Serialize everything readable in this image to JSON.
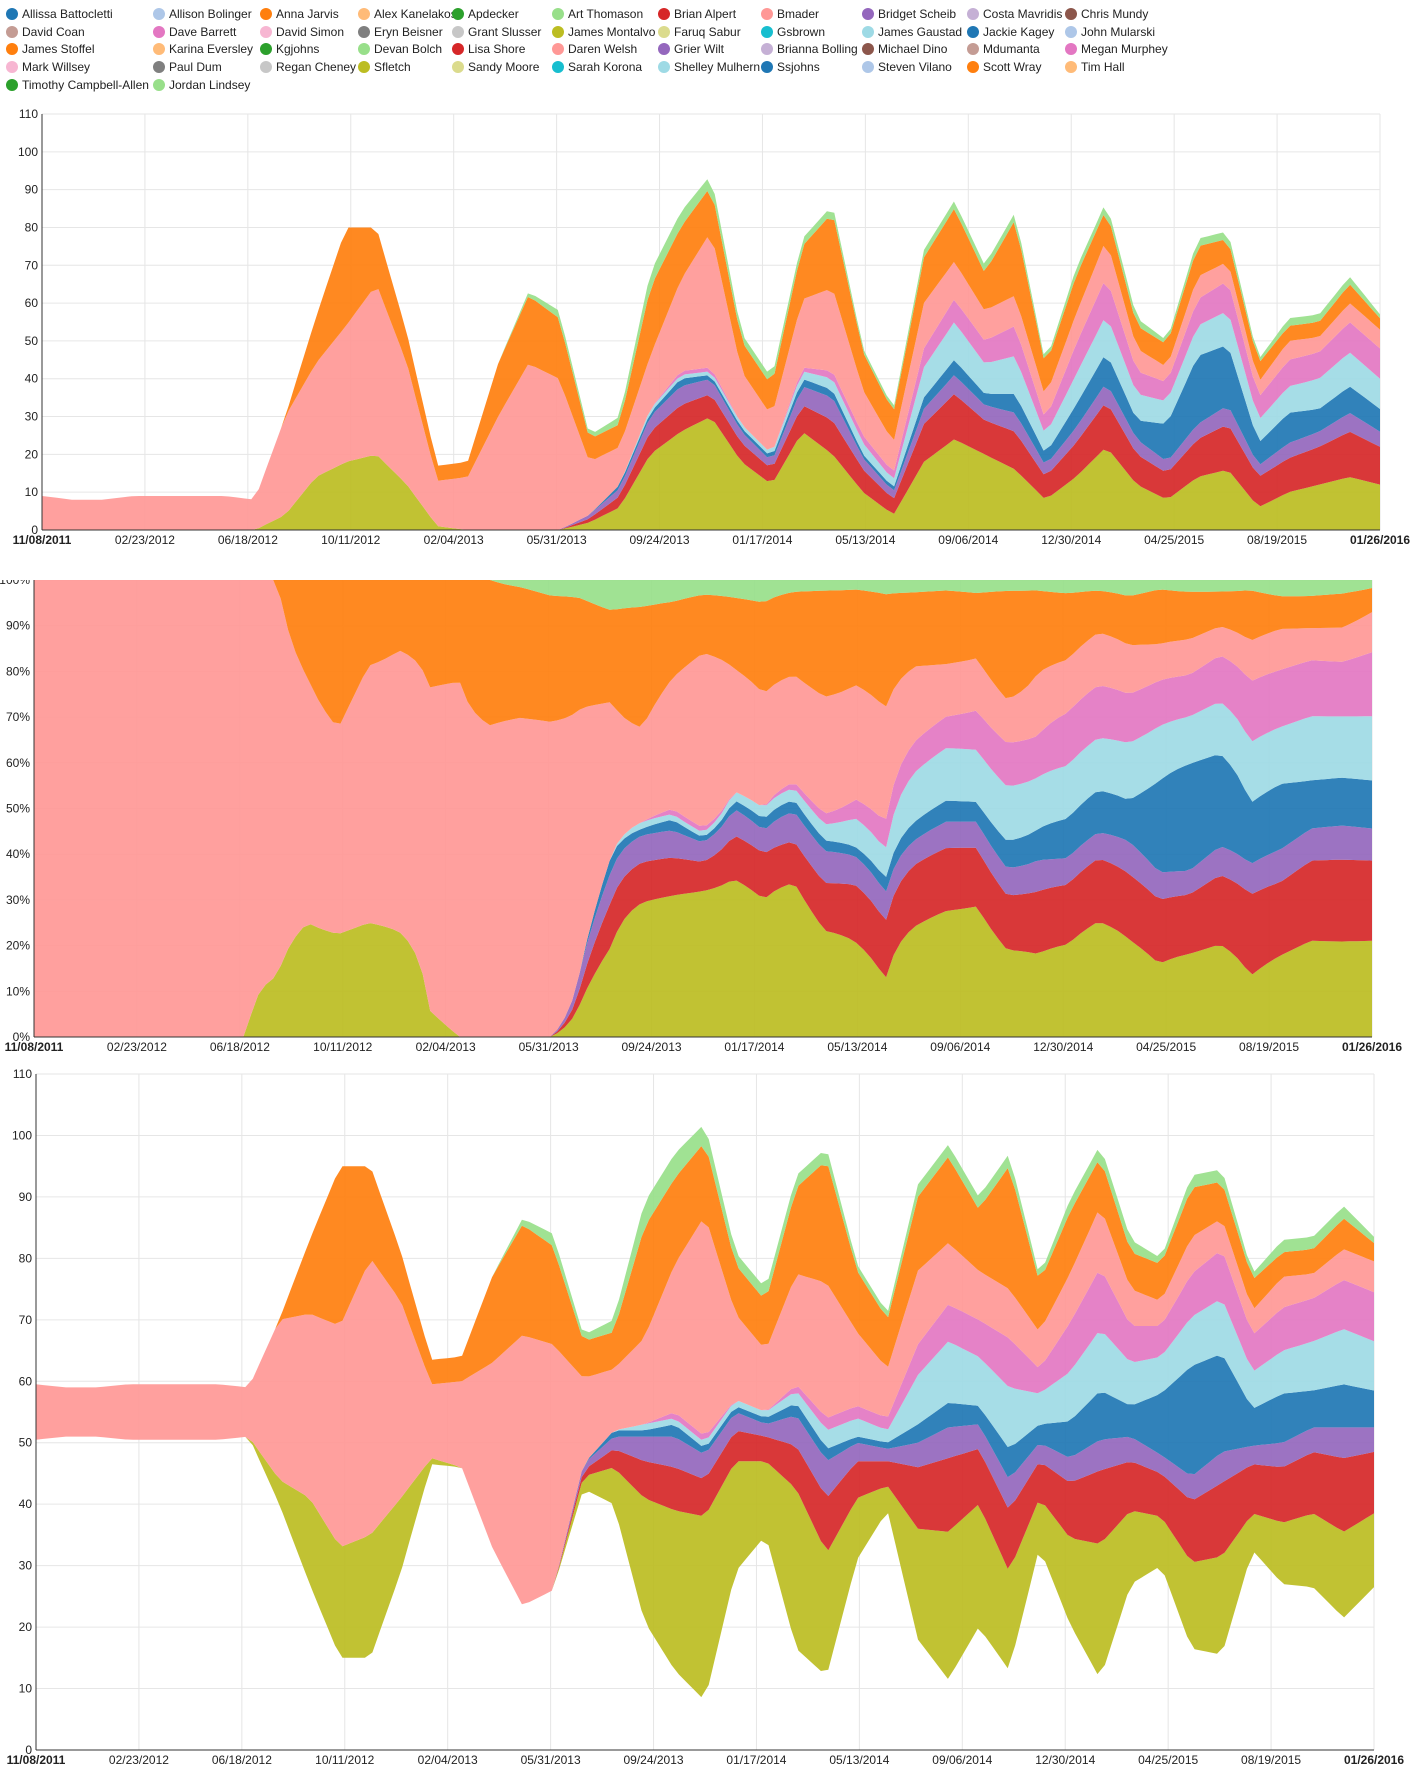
{
  "legend": [
    {
      "name": "Allissa Battocletti",
      "color": "#1f77b4"
    },
    {
      "name": "Allison Bolinger",
      "color": "#aec7e8"
    },
    {
      "name": "Anna Jarvis",
      "color": "#ff7f0e"
    },
    {
      "name": "Alex Kanelakos",
      "color": "#ffbb78"
    },
    {
      "name": "Apdecker",
      "color": "#2ca02c"
    },
    {
      "name": "Art Thomason",
      "color": "#98df8a"
    },
    {
      "name": "Brian Alpert",
      "color": "#d62728"
    },
    {
      "name": "Bmader",
      "color": "#ff9896"
    },
    {
      "name": "Bridget Scheib",
      "color": "#9467bd"
    },
    {
      "name": "Costa Mavridis",
      "color": "#c5b0d5"
    },
    {
      "name": "Chris Mundy",
      "color": "#8c564b"
    },
    {
      "name": "David Coan",
      "color": "#c49c94"
    },
    {
      "name": "Dave Barrett",
      "color": "#e377c2"
    },
    {
      "name": "David Simon",
      "color": "#f7b6d2"
    },
    {
      "name": "Eryn Beisner",
      "color": "#7f7f7f"
    },
    {
      "name": "Grant Slusser",
      "color": "#c7c7c7"
    },
    {
      "name": "James Montalvo",
      "color": "#bcbd22"
    },
    {
      "name": "Faruq Sabur",
      "color": "#dbdb8d"
    },
    {
      "name": "Gsbrown",
      "color": "#17becf"
    },
    {
      "name": "James Gaustad",
      "color": "#9edae5"
    },
    {
      "name": "Jackie Kagey",
      "color": "#1f77b4"
    },
    {
      "name": "John Mularski",
      "color": "#aec7e8"
    },
    {
      "name": "James Stoffel",
      "color": "#ff7f0e"
    },
    {
      "name": "Karina Eversley",
      "color": "#ffbb78"
    },
    {
      "name": "Kgjohns",
      "color": "#2ca02c"
    },
    {
      "name": "Devan Bolch",
      "color": "#98df8a"
    },
    {
      "name": "Lisa Shore",
      "color": "#d62728"
    },
    {
      "name": "Daren Welsh",
      "color": "#ff9896"
    },
    {
      "name": "Grier Wilt",
      "color": "#9467bd"
    },
    {
      "name": "Brianna Bolling",
      "color": "#c5b0d5"
    },
    {
      "name": "Michael Dino",
      "color": "#8c564b"
    },
    {
      "name": "Mdumanta",
      "color": "#c49c94"
    },
    {
      "name": "Megan Murphey",
      "color": "#e377c2"
    },
    {
      "name": "Mark Willsey",
      "color": "#f7b6d2"
    },
    {
      "name": "Paul Dum",
      "color": "#7f7f7f"
    },
    {
      "name": "Regan Cheney",
      "color": "#c7c7c7"
    },
    {
      "name": "Sfletch",
      "color": "#bcbd22"
    },
    {
      "name": "Sandy Moore",
      "color": "#dbdb8d"
    },
    {
      "name": "Sarah Korona",
      "color": "#17becf"
    },
    {
      "name": "Shelley Mulhern",
      "color": "#9edae5"
    },
    {
      "name": "Ssjohns",
      "color": "#1f77b4"
    },
    {
      "name": "Steven Vilano",
      "color": "#aec7e8"
    },
    {
      "name": "Scott Wray",
      "color": "#ff7f0e"
    },
    {
      "name": "Tim Hall",
      "color": "#ffbb78"
    },
    {
      "name": "Timothy Campbell-Allen",
      "color": "#2ca02c"
    },
    {
      "name": "Jordan Lindsey",
      "color": "#98df8a"
    }
  ],
  "chart_data": [
    {
      "type": "area",
      "mode": "stacked",
      "ylim": [
        0,
        110
      ],
      "yticks": [
        0,
        10,
        20,
        30,
        40,
        50,
        60,
        70,
        80,
        90,
        100,
        110
      ],
      "ytick_labels": [
        "0",
        "10",
        "20",
        "30",
        "40",
        "50",
        "60",
        "70",
        "80",
        "90",
        "100",
        "110"
      ],
      "xtick_labels": [
        "11/08/2011",
        "02/23/2012",
        "06/18/2012",
        "10/11/2012",
        "02/04/2013",
        "05/31/2013",
        "09/24/2013",
        "01/17/2014",
        "05/13/2014",
        "09/06/2014",
        "12/30/2014",
        "04/25/2015",
        "08/19/2015",
        "01/26/2016"
      ],
      "x_range": [
        "11/08/2011",
        "01/26/2016"
      ],
      "grid": true,
      "series": [
        {
          "name": "Sfletch",
          "values": [
            0,
            0,
            0,
            0,
            0,
            0,
            0,
            0,
            4,
            14,
            18,
            20,
            12,
            1,
            0,
            0,
            0,
            0,
            2,
            6,
            20,
            26,
            30,
            18,
            12,
            26,
            20,
            10,
            4,
            18,
            24,
            20,
            16,
            8,
            14,
            22,
            12,
            8,
            14,
            16,
            6,
            10,
            12,
            14,
            12
          ]
        },
        {
          "name": "Lisa Shore",
          "values": [
            0,
            0,
            0,
            0,
            0,
            0,
            0,
            0,
            0,
            0,
            0,
            0,
            0,
            0,
            0,
            0,
            0,
            0,
            1,
            3,
            6,
            7,
            6,
            5,
            4,
            7,
            9,
            6,
            4,
            10,
            12,
            9,
            10,
            6,
            9,
            12,
            8,
            7,
            10,
            12,
            8,
            9,
            10,
            12,
            10
          ]
        },
        {
          "name": "Grier Wilt",
          "values": [
            0,
            0,
            0,
            0,
            0,
            0,
            0,
            0,
            0,
            0,
            0,
            0,
            0,
            0,
            0,
            0,
            0,
            0,
            1,
            2,
            4,
            5,
            4,
            3,
            2,
            5,
            6,
            3,
            2,
            4,
            5,
            4,
            5,
            3,
            4,
            5,
            4,
            3,
            4,
            5,
            3,
            4,
            4,
            5,
            4
          ]
        },
        {
          "name": "Jackie Kagey",
          "values": [
            0,
            0,
            0,
            0,
            0,
            0,
            0,
            0,
            0,
            0,
            0,
            0,
            0,
            0,
            0,
            0,
            0,
            0,
            0,
            1,
            1,
            2,
            1,
            1,
            1,
            2,
            2,
            1,
            1,
            3,
            4,
            3,
            5,
            3,
            6,
            8,
            5,
            10,
            18,
            16,
            6,
            8,
            6,
            7,
            6
          ]
        },
        {
          "name": "Shelley Mulhern",
          "values": [
            0,
            0,
            0,
            0,
            0,
            0,
            0,
            0,
            0,
            0,
            0,
            0,
            0,
            0,
            0,
            0,
            0,
            0,
            0,
            0,
            1,
            1,
            1,
            1,
            1,
            2,
            3,
            3,
            2,
            8,
            10,
            8,
            10,
            5,
            8,
            10,
            7,
            6,
            8,
            9,
            6,
            7,
            8,
            9,
            8
          ]
        },
        {
          "name": "Megan Murphey",
          "values": [
            0,
            0,
            0,
            0,
            0,
            0,
            0,
            0,
            0,
            0,
            0,
            0,
            0,
            0,
            0,
            0,
            0,
            0,
            0,
            0,
            0,
            1,
            1,
            0,
            0,
            1,
            2,
            2,
            2,
            5,
            6,
            6,
            8,
            4,
            8,
            10,
            6,
            5,
            7,
            8,
            6,
            7,
            7,
            8,
            8
          ]
        },
        {
          "name": "Daren Welsh",
          "values": [
            9,
            8,
            8,
            9,
            9,
            9,
            9,
            8,
            26,
            30,
            36,
            45,
            32,
            12,
            14,
            30,
            44,
            40,
            14,
            10,
            14,
            24,
            36,
            14,
            10,
            18,
            22,
            12,
            8,
            12,
            10,
            8,
            8,
            6,
            8,
            10,
            6,
            4,
            6,
            5,
            4,
            5,
            4,
            5,
            5
          ]
        },
        {
          "name": "Scott Wray",
          "values": [
            0,
            0,
            0,
            0,
            0,
            0,
            0,
            0,
            0,
            12,
            26,
            15,
            8,
            4,
            4,
            14,
            18,
            16,
            6,
            6,
            18,
            14,
            12,
            8,
            8,
            14,
            20,
            10,
            8,
            12,
            14,
            10,
            20,
            8,
            10,
            8,
            6,
            6,
            8,
            6,
            5,
            4,
            4,
            5,
            3
          ]
        },
        {
          "name": "Jordan Lindsey",
          "values": [
            0,
            0,
            0,
            0,
            0,
            0,
            0,
            0,
            0,
            0,
            0,
            0,
            0,
            0,
            0,
            0,
            1,
            2,
            1,
            2,
            4,
            4,
            3,
            2,
            2,
            2,
            2,
            1,
            1,
            2,
            2,
            2,
            2,
            1,
            2,
            2,
            2,
            1,
            2,
            2,
            1,
            2,
            2,
            2,
            1
          ]
        }
      ]
    },
    {
      "type": "area",
      "mode": "expanded",
      "ylim": [
        0,
        100
      ],
      "yticks": [
        0,
        10,
        20,
        30,
        40,
        50,
        60,
        70,
        80,
        90,
        100
      ],
      "ytick_labels": [
        "0%",
        "10%",
        "20%",
        "30%",
        "40%",
        "50%",
        "60%",
        "70%",
        "80%",
        "90%",
        "100%"
      ],
      "xtick_labels": [
        "11/08/2011",
        "02/23/2012",
        "06/18/2012",
        "10/11/2012",
        "02/04/2013",
        "05/31/2013",
        "09/24/2013",
        "01/17/2014",
        "05/13/2014",
        "09/06/2014",
        "12/30/2014",
        "04/25/2015",
        "08/19/2015",
        "01/26/2016"
      ],
      "x_range": [
        "11/08/2011",
        "01/26/2016"
      ],
      "grid": true,
      "series_ref": 0
    },
    {
      "type": "area",
      "mode": "streamgraph",
      "ylim": [
        0,
        110
      ],
      "yticks": [
        0,
        10,
        20,
        30,
        40,
        50,
        60,
        70,
        80,
        90,
        100,
        110
      ],
      "ytick_labels": [
        "0",
        "10",
        "20",
        "30",
        "40",
        "50",
        "60",
        "70",
        "80",
        "90",
        "100",
        "110"
      ],
      "xtick_labels": [
        "11/08/2011",
        "02/23/2012",
        "06/18/2012",
        "10/11/2012",
        "02/04/2013",
        "05/31/2013",
        "09/24/2013",
        "01/17/2014",
        "05/13/2014",
        "09/06/2014",
        "12/30/2014",
        "04/25/2015",
        "08/19/2015",
        "01/26/2016"
      ],
      "x_range": [
        "11/08/2011",
        "01/26/2016"
      ],
      "grid": true,
      "center": 55,
      "series_ref": 0
    }
  ]
}
